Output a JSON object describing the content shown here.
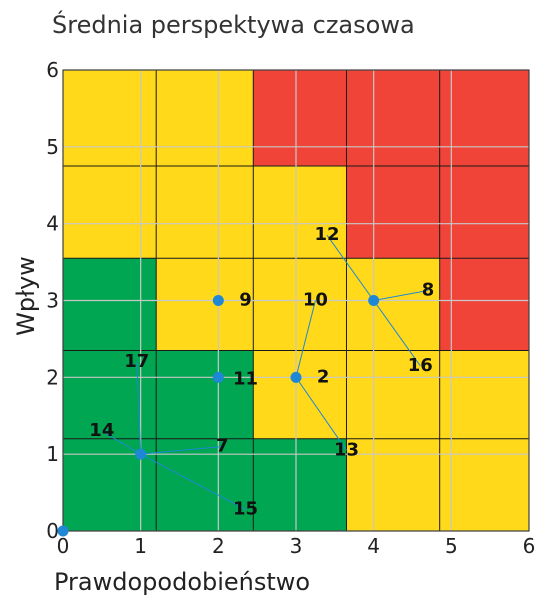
{
  "chart_data": {
    "type": "scatter",
    "title": "Średnia perspektywa czasowa",
    "xlabel": "Prawdopodobieństwo",
    "ylabel": "Wpływ",
    "xlim": [
      0,
      6
    ],
    "ylim": [
      0,
      6
    ],
    "xticks": [
      "0",
      "1",
      "2",
      "3",
      "4",
      "5",
      "6"
    ],
    "yticks": [
      "0",
      "1",
      "2",
      "3",
      "4",
      "5",
      "6"
    ],
    "grid": true,
    "zones": [
      {
        "x0": 0,
        "x1": 1.2,
        "y0": 0,
        "y1": 3.55,
        "color": "#00a651"
      },
      {
        "x0": 1.2,
        "x1": 2.45,
        "y0": 0,
        "y1": 2.35,
        "color": "#00a651"
      },
      {
        "x0": 2.45,
        "x1": 3.65,
        "y0": 0,
        "y1": 1.2,
        "color": "#00a651"
      },
      {
        "x0": 0,
        "x1": 2.45,
        "y0": 3.55,
        "y1": 6,
        "color": "#ffd91a"
      },
      {
        "x0": 1.2,
        "x1": 2.45,
        "y0": 2.35,
        "y1": 3.55,
        "color": "#ffd91a"
      },
      {
        "x0": 2.45,
        "x1": 3.65,
        "y0": 1.2,
        "y1": 4.75,
        "color": "#ffd91a"
      },
      {
        "x0": 3.65,
        "x1": 4.85,
        "y0": 0,
        "y1": 3.55,
        "color": "#ffd91a"
      },
      {
        "x0": 4.85,
        "x1": 6,
        "y0": 0,
        "y1": 2.35,
        "color": "#ffd91a"
      },
      {
        "x0": 2.45,
        "x1": 3.65,
        "y0": 4.75,
        "y1": 6,
        "color": "#f04438"
      },
      {
        "x0": 3.65,
        "x1": 4.85,
        "y0": 3.55,
        "y1": 6,
        "color": "#f04438"
      },
      {
        "x0": 4.85,
        "x1": 6,
        "y0": 2.35,
        "y1": 6,
        "color": "#f04438"
      }
    ],
    "zone_lines": {
      "x": [
        1.2,
        2.45,
        3.65,
        4.85
      ],
      "y": [
        1.2,
        2.35,
        3.55,
        4.75
      ]
    },
    "marker_color": "#1e88d6",
    "points": [
      {
        "x": 0,
        "y": 0
      },
      {
        "x": 1,
        "y": 1
      },
      {
        "x": 2,
        "y": 3
      },
      {
        "x": 2,
        "y": 2
      },
      {
        "x": 3,
        "y": 2
      },
      {
        "x": 4,
        "y": 3
      }
    ],
    "labels": [
      {
        "text": "7",
        "x": 2.05,
        "y": 1.1,
        "px": 1,
        "py": 1
      },
      {
        "text": "14",
        "x": 0.5,
        "y": 1.3,
        "px": 1,
        "py": 1
      },
      {
        "text": "15",
        "x": 2.35,
        "y": 0.28,
        "px": 1,
        "py": 1
      },
      {
        "text": "17",
        "x": 0.95,
        "y": 2.2,
        "px": 1,
        "py": 1
      },
      {
        "text": "9",
        "x": 2.35,
        "y": 3.0
      },
      {
        "text": "11",
        "x": 2.35,
        "y": 1.97
      },
      {
        "text": "10",
        "x": 3.25,
        "y": 3.0,
        "px": 3,
        "py": 2
      },
      {
        "text": "2",
        "x": 3.35,
        "y": 2.0
      },
      {
        "text": "13",
        "x": 3.65,
        "y": 1.05,
        "px": 3,
        "py": 2
      },
      {
        "text": "12",
        "x": 3.4,
        "y": 3.85,
        "px": 4,
        "py": 3
      },
      {
        "text": "8",
        "x": 4.7,
        "y": 3.13,
        "px": 4,
        "py": 3
      },
      {
        "text": "16",
        "x": 4.6,
        "y": 2.15,
        "px": 4,
        "py": 3
      }
    ]
  }
}
